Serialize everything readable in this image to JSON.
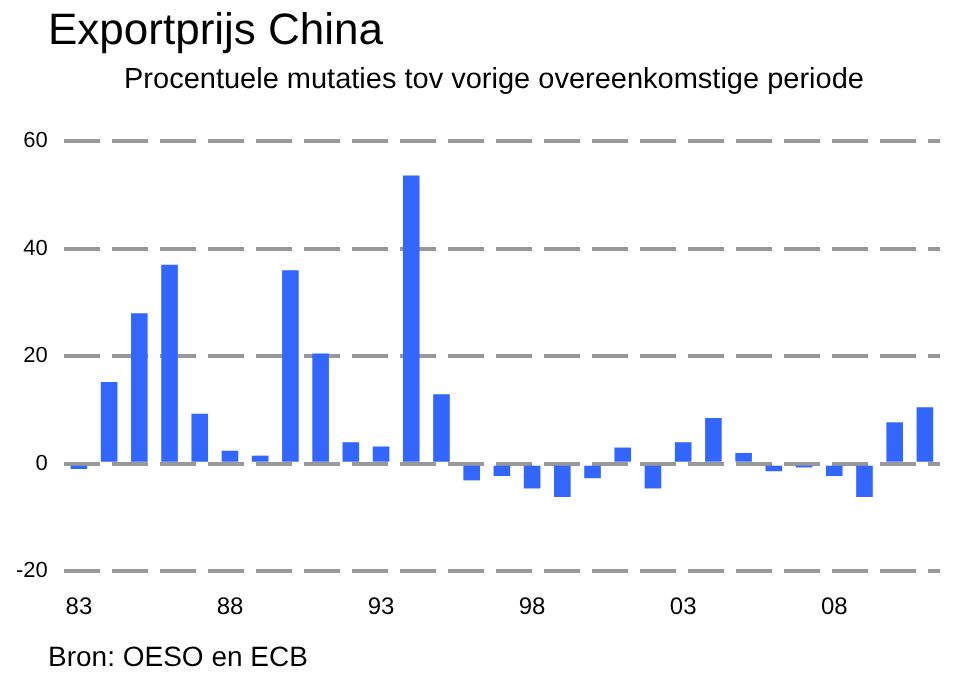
{
  "chart_data": {
    "type": "bar",
    "title": "Exportprijs China",
    "subtitle": "Procentuele mutaties tov vorige overeenkomstige periode",
    "categories": [
      "83",
      null,
      null,
      null,
      null,
      "88",
      null,
      null,
      null,
      null,
      "93",
      null,
      null,
      null,
      null,
      "98",
      null,
      null,
      null,
      null,
      "03",
      null,
      null,
      null,
      null,
      "08",
      null,
      null,
      null
    ],
    "values": [
      -1,
      15.2,
      28,
      37,
      9.3,
      2.4,
      1.5,
      36,
      20.5,
      4,
      3.2,
      53.6,
      12.9,
      -3.1,
      -2.3,
      -4.6,
      -6.2,
      -2.7,
      3,
      -4.6,
      4,
      8.5,
      2,
      -1.4,
      -0.7,
      -2.3,
      -6.2,
      7.7,
      10.5
    ],
    "color": "#3366ff",
    "ylim": [
      -20,
      60
    ],
    "yticks": [
      -20,
      0,
      20,
      40,
      60
    ],
    "grid": "y",
    "annotations": [
      "Bron: OESO en ECB"
    ]
  }
}
